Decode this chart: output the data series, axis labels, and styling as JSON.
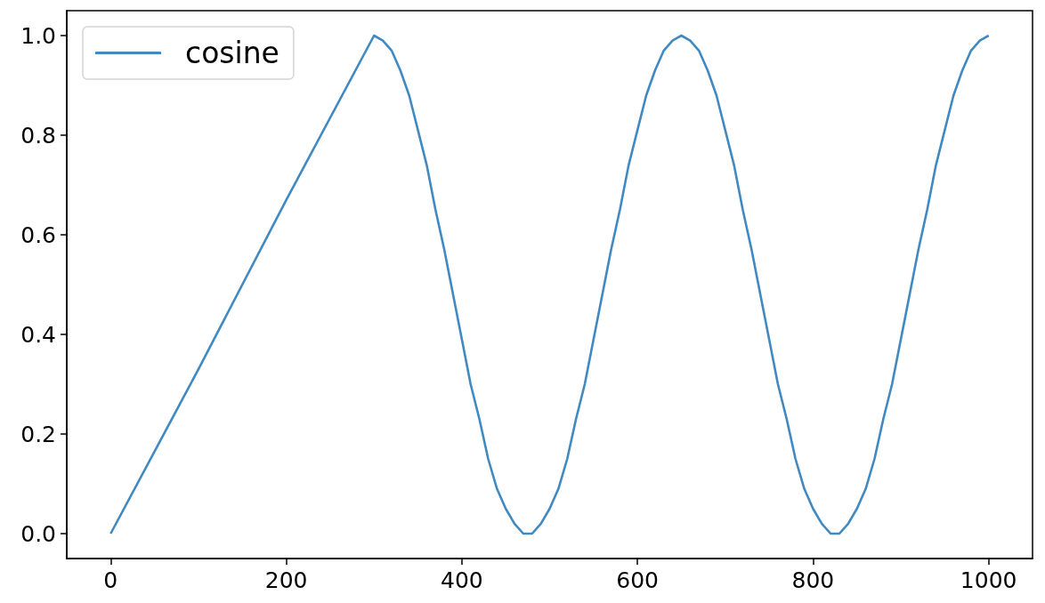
{
  "chart_data": {
    "type": "line",
    "x": [
      0,
      100,
      200,
      300,
      310,
      320,
      330,
      340,
      350,
      360,
      370,
      380,
      390,
      400,
      410,
      420,
      430,
      440,
      450,
      460,
      470,
      475,
      480,
      490,
      500,
      510,
      520,
      530,
      540,
      550,
      560,
      570,
      580,
      590,
      600,
      610,
      620,
      630,
      640,
      650,
      660,
      670,
      680,
      690,
      700,
      710,
      720,
      730,
      740,
      750,
      760,
      770,
      780,
      790,
      800,
      810,
      820,
      825,
      830,
      840,
      850,
      860,
      870,
      880,
      890,
      900,
      910,
      920,
      930,
      940,
      950,
      960,
      970,
      980,
      990,
      1000
    ],
    "series": [
      {
        "name": "cosine",
        "color": "#4189c1",
        "values": [
          0,
          0.33,
          0.67,
          1,
          0.99,
          0.97,
          0.93,
          0.88,
          0.81,
          0.74,
          0.65,
          0.57,
          0.48,
          0.39,
          0.3,
          0.23,
          0.15,
          0.09,
          0.05,
          0.02,
          0,
          0,
          0,
          0.02,
          0.05,
          0.09,
          0.15,
          0.23,
          0.3,
          0.39,
          0.48,
          0.57,
          0.65,
          0.74,
          0.81,
          0.88,
          0.93,
          0.97,
          0.99,
          1,
          0.99,
          0.97,
          0.93,
          0.88,
          0.81,
          0.74,
          0.65,
          0.57,
          0.48,
          0.39,
          0.3,
          0.23,
          0.15,
          0.09,
          0.05,
          0.02,
          0,
          0,
          0,
          0.02,
          0.05,
          0.09,
          0.15,
          0.23,
          0.3,
          0.39,
          0.48,
          0.57,
          0.65,
          0.74,
          0.81,
          0.88,
          0.93,
          0.97,
          0.99,
          1
        ]
      }
    ],
    "xlim": [
      -50,
      1050
    ],
    "xticks": [
      0,
      200,
      400,
      600,
      800,
      1000
    ],
    "ylim": [
      -0.05,
      1.05
    ],
    "yticks": [
      {
        "value": 0,
        "label": "0.0"
      },
      0.2,
      0.4,
      0.6,
      0.8,
      {
        "value": 1,
        "label": "1.0"
      }
    ],
    "legend": "top left"
  }
}
